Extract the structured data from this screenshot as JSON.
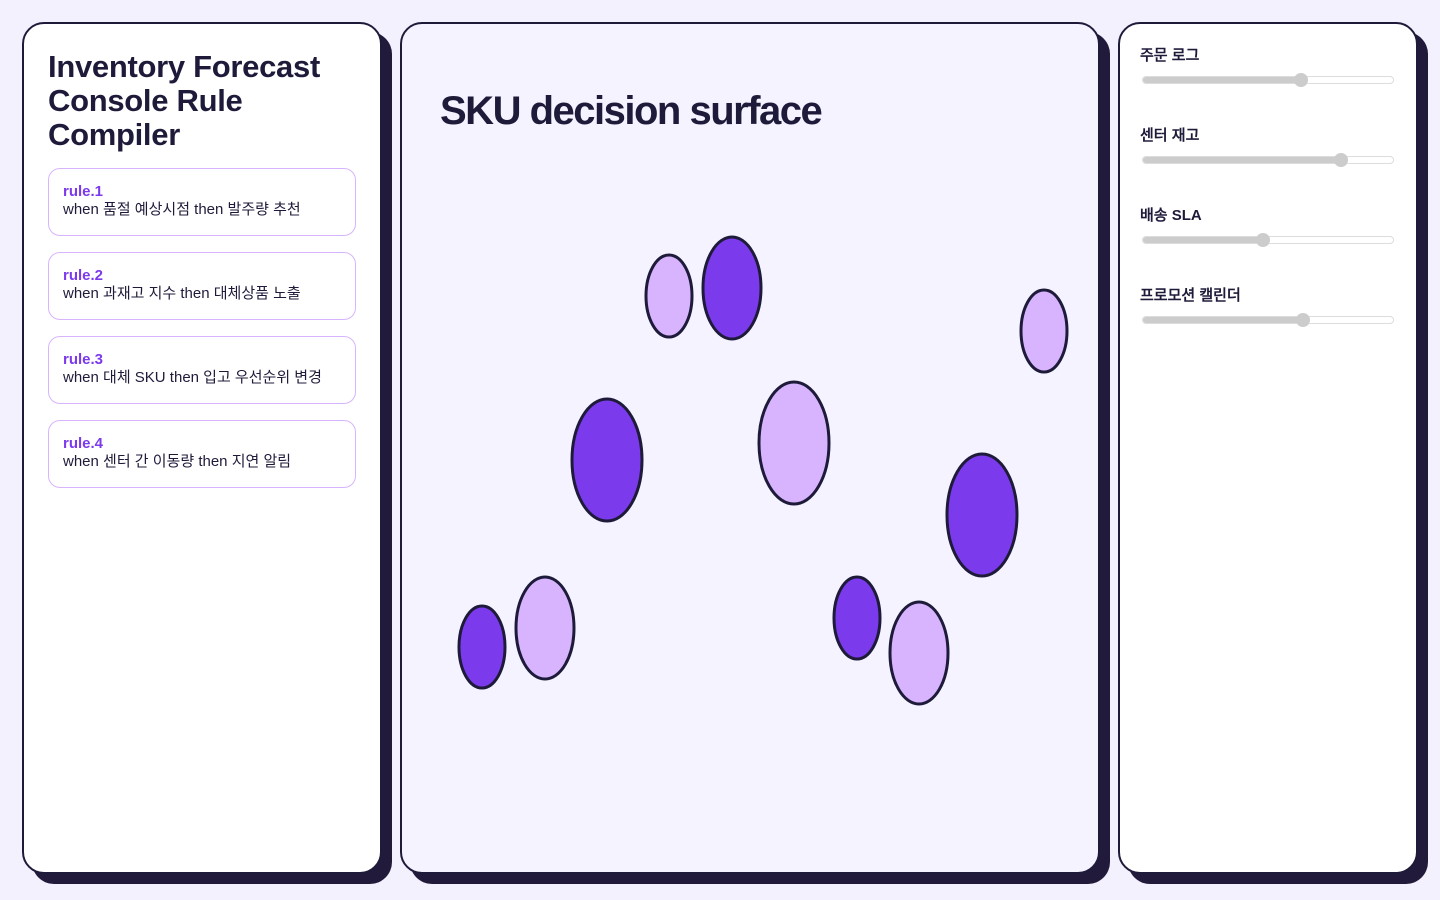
{
  "sidebar": {
    "title": "Inventory Forecast Console Rule Compiler",
    "rules": [
      {
        "id": "rule.1",
        "text": "when 품절 예상시점 then 발주량 추천"
      },
      {
        "id": "rule.2",
        "text": "when 과재고 지수 then 대체상품 노출"
      },
      {
        "id": "rule.3",
        "text": "when 대체 SKU then 입고 우선순위 변경"
      },
      {
        "id": "rule.4",
        "text": "when 센터 간 이동량 then 지연 알림"
      }
    ]
  },
  "surface": {
    "title": "SKU decision surface"
  },
  "controls": {
    "sliders": [
      {
        "label": "주문 로그",
        "value": 63,
        "min": 0,
        "max": 100
      },
      {
        "label": "센터 재고",
        "value": 79,
        "min": 0,
        "max": 100
      },
      {
        "label": "배송 SLA",
        "value": 48,
        "min": 0,
        "max": 100
      },
      {
        "label": "프로모션 캘린더",
        "value": 64,
        "min": 0,
        "max": 100
      }
    ]
  }
}
